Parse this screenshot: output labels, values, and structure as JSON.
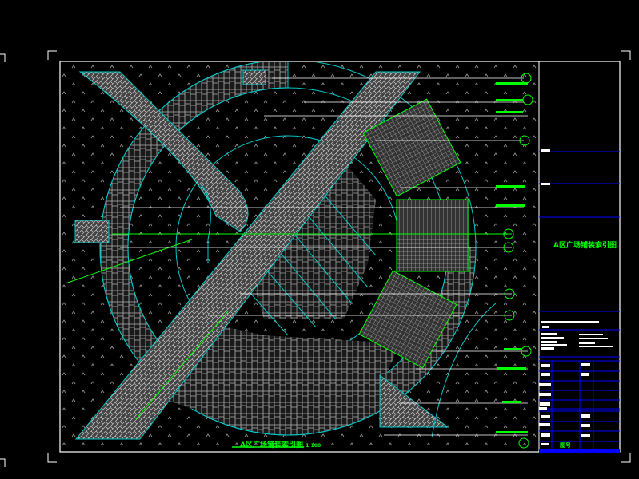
{
  "drawing": {
    "title": "A区广场铺装索引图",
    "plan_caption": "A区广场铺装索引图",
    "scale": "1:100"
  },
  "title_block": {
    "drawing_name": "A区广场铺装索引图",
    "sheet_label": "图号"
  },
  "colors": {
    "background": "#000000",
    "frame": "#ffffff",
    "arcs": "#00c8c8",
    "paving": "#a0a0a0",
    "callouts": "#00ff00",
    "title_block_lines": "#0000ff"
  }
}
